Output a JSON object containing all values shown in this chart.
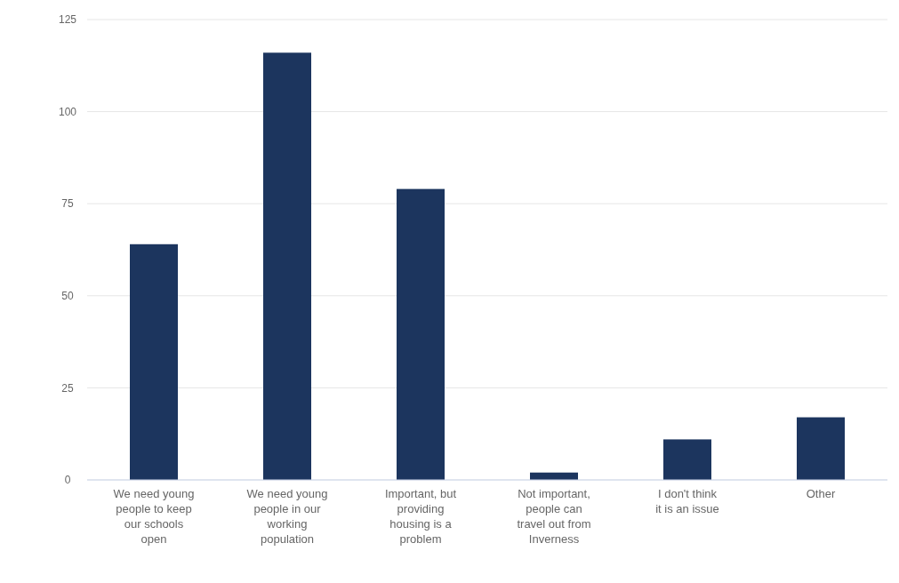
{
  "chart_data": {
    "type": "bar",
    "categories": [
      "We need young people to keep our schools open",
      "We need young people in our working population",
      "Important, but providing housing is a problem",
      "Not important, people can travel out from Inverness",
      "I don't think it is an issue",
      "Other"
    ],
    "values": [
      64,
      116,
      79,
      2,
      11,
      17
    ],
    "color": "#1c355e",
    "ylim": [
      0,
      125
    ],
    "yticks": [
      0,
      25,
      50,
      75,
      100,
      125
    ],
    "grid": "y"
  }
}
